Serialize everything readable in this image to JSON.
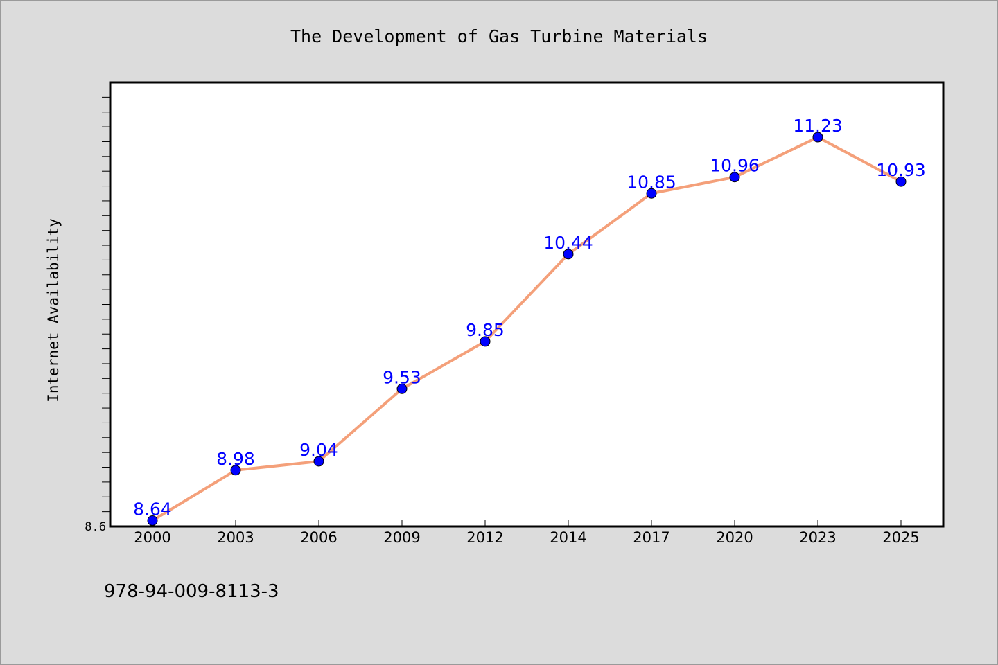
{
  "chart_data": {
    "type": "line",
    "title": "The Development of Gas Turbine Materials",
    "xlabel": "",
    "ylabel": "Internet Availability",
    "categories": [
      "2000",
      "2003",
      "2006",
      "2009",
      "2012",
      "2014",
      "2017",
      "2020",
      "2023",
      "2025"
    ],
    "series": [
      {
        "values": [
          8.64,
          8.98,
          9.04,
          9.53,
          9.85,
          10.44,
          10.85,
          10.96,
          11.23,
          10.93
        ]
      }
    ],
    "ylim": [
      8.6,
      11.6
    ],
    "y_tick_labels": [
      "8.6"
    ],
    "data_labels": [
      "8.64",
      "8.98",
      "9.04",
      "9.53",
      "9.85",
      "10.44",
      "10.85",
      "10.96",
      "11.23",
      "10.93"
    ],
    "grid": false,
    "legend": "none",
    "footnote": "978-94-009-8113-3",
    "colors": {
      "line": "#f4a07a",
      "marker": "#0000ff",
      "label": "#0000ff",
      "background": "#dcdcdc",
      "plot_background": "#ffffff"
    }
  }
}
